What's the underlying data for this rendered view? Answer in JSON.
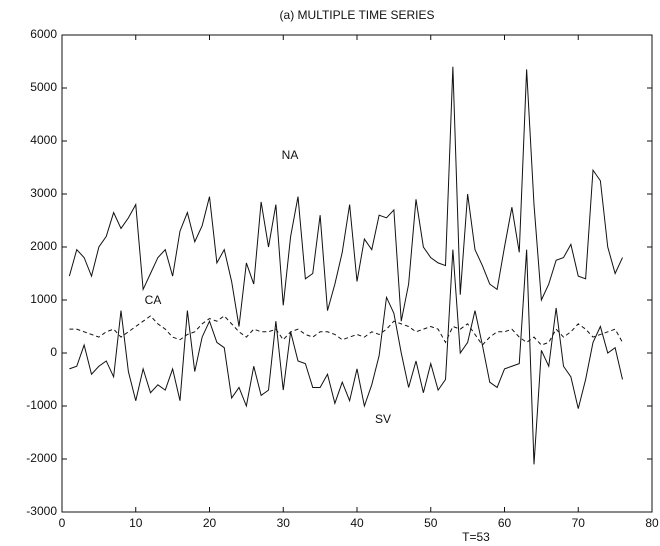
{
  "chart_data": {
    "type": "line",
    "title": "(a) MULTIPLE TIME SERIES",
    "annotation": "T=53",
    "x": [
      1,
      2,
      3,
      4,
      5,
      6,
      7,
      8,
      9,
      10,
      11,
      12,
      13,
      14,
      15,
      16,
      17,
      18,
      19,
      20,
      21,
      22,
      23,
      24,
      25,
      26,
      27,
      28,
      29,
      30,
      31,
      32,
      33,
      34,
      35,
      36,
      37,
      38,
      39,
      40,
      41,
      42,
      43,
      44,
      45,
      46,
      47,
      48,
      49,
      50,
      51,
      52,
      53,
      54,
      55,
      56,
      57,
      58,
      59,
      60,
      61,
      62,
      63,
      64,
      65,
      66,
      67,
      68,
      69,
      70,
      71,
      72,
      73,
      74,
      75,
      76
    ],
    "series": [
      {
        "name": "NA",
        "color": "#111111",
        "dashed": false,
        "values": [
          1450,
          1950,
          1800,
          1450,
          2000,
          2200,
          2650,
          2350,
          2550,
          2800,
          1200,
          1500,
          1800,
          1950,
          1450,
          2300,
          2650,
          2100,
          2400,
          2950,
          1700,
          1950,
          1350,
          500,
          1700,
          1300,
          2850,
          2000,
          2800,
          900,
          2200,
          2950,
          1400,
          1500,
          2600,
          800,
          1300,
          1900,
          2800,
          1350,
          2150,
          1950,
          2600,
          2550,
          2700,
          600,
          1300,
          2900,
          2000,
          1800,
          1700,
          1650,
          5400,
          1100,
          3000,
          1950,
          1650,
          1300,
          1200,
          2000,
          2750,
          1900,
          5350,
          2800,
          1000,
          1300,
          1750,
          1800,
          2050,
          1450,
          1400,
          3450,
          3250,
          2000,
          1500,
          1800
        ]
      },
      {
        "name": "CA",
        "color": "#111111",
        "dashed": true,
        "values": [
          450,
          450,
          400,
          350,
          300,
          400,
          450,
          300,
          400,
          500,
          600,
          700,
          550,
          450,
          300,
          250,
          350,
          400,
          550,
          650,
          600,
          700,
          550,
          400,
          300,
          450,
          400,
          400,
          450,
          250,
          400,
          450,
          350,
          300,
          400,
          400,
          350,
          250,
          300,
          350,
          300,
          400,
          350,
          450,
          600,
          550,
          500,
          400,
          450,
          500,
          450,
          200,
          500,
          450,
          550,
          350,
          150,
          300,
          400,
          400,
          450,
          300,
          200,
          300,
          150,
          200,
          450,
          300,
          400,
          550,
          450,
          300,
          350,
          400,
          450,
          200
        ]
      },
      {
        "name": "SV",
        "color": "#111111",
        "dashed": false,
        "values": [
          -300,
          -250,
          150,
          -400,
          -250,
          -150,
          -450,
          800,
          -350,
          -900,
          -300,
          -750,
          -600,
          -700,
          -300,
          -900,
          800,
          -350,
          300,
          600,
          200,
          100,
          -850,
          -650,
          -1000,
          -250,
          -800,
          -700,
          600,
          -700,
          400,
          -150,
          -200,
          -650,
          -650,
          -400,
          -950,
          -550,
          -900,
          -300,
          -1000,
          -600,
          -50,
          1050,
          750,
          0,
          -650,
          -150,
          -750,
          -200,
          -700,
          -500,
          1950,
          0,
          200,
          800,
          150,
          -550,
          -650,
          -300,
          -250,
          -200,
          1950,
          -2100,
          50,
          -250,
          850,
          -250,
          -450,
          -1050,
          -500,
          200,
          500,
          0,
          100,
          -500
        ]
      }
    ],
    "xlim": [
      0,
      80
    ],
    "xticks": [
      0,
      10,
      20,
      30,
      40,
      50,
      60,
      70,
      80
    ],
    "ylim": [
      -3000,
      6000
    ],
    "yticks": [
      -3000,
      -2000,
      -1000,
      0,
      1000,
      2000,
      3000,
      4000,
      5000,
      6000
    ]
  }
}
